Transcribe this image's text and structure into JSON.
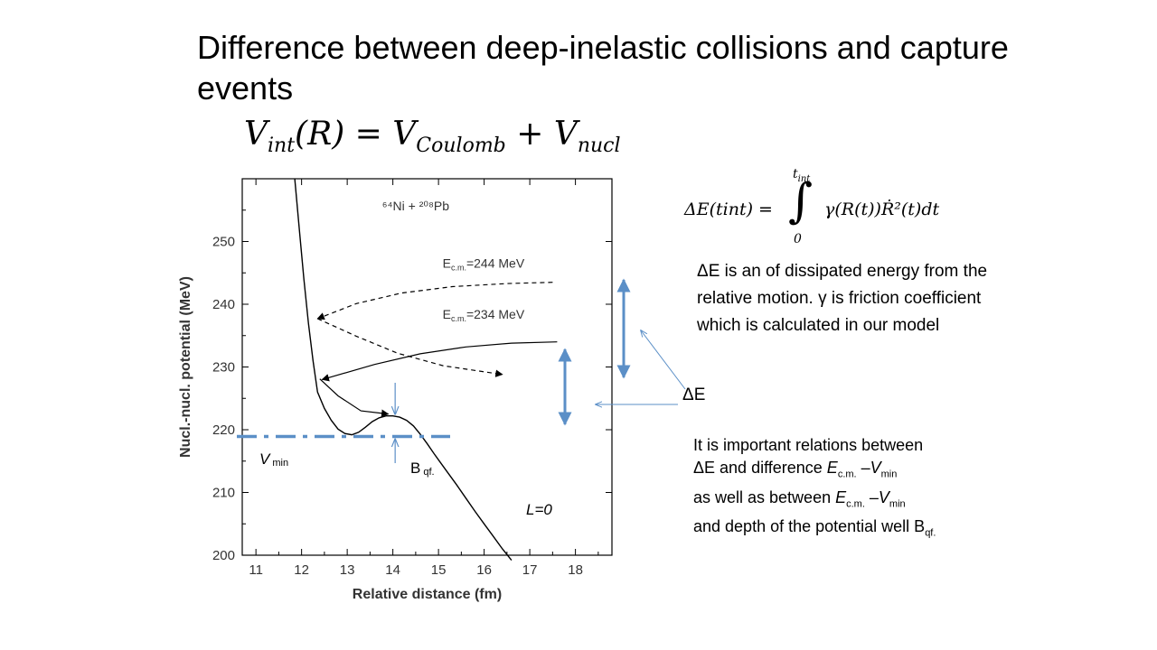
{
  "slide": {
    "title": "Difference between deep-inelastic collisions and capture events",
    "formula_main": {
      "lhs": "V",
      "lhs_sub": "int",
      "arg": "(R) = ",
      "t1": "V",
      "t1_sub": "Coulomb",
      "plus": " + ",
      "t2": "V",
      "t2_sub": "nucl"
    },
    "formula_integral": {
      "lhs": "ΔE(tint) =",
      "upper": "t",
      "upper_sub": "int",
      "lower": "0",
      "integrand": "γ(R(t))Ṙ²(t)dt"
    },
    "explanation": "ΔE is an of dissipated energy from the relative motion. γ is friction coefficient which is calculated in our model",
    "delta_e_label": "ΔE",
    "relations": {
      "line1": "It is important relations between",
      "line2_a": "ΔE and difference ",
      "ecm_E": "E",
      "ecm_sub": "c.m.",
      "dash": " –",
      "vmin_V": "V",
      "vmin_sub": "min",
      "line3_a": "as well as between ",
      "line4_a": "and depth of the potential well B",
      "bqf_sub": "qf."
    }
  },
  "annotations": {
    "vmin": "V",
    "vmin_sub": "min",
    "bqf": "B",
    "bqf_sub": "qf.",
    "l0": "L=0"
  },
  "chart_data": {
    "type": "line",
    "title": "⁶⁴Ni + ²⁰⁸Pb",
    "xlabel": "Relative distance (fm)",
    "ylabel": "Nucl.-nucl. potential (MeV)",
    "xlim": [
      10.7,
      18.8
    ],
    "ylim": [
      200,
      260
    ],
    "xticks": [
      11,
      12,
      13,
      14,
      15,
      16,
      17,
      18
    ],
    "yticks": [
      200,
      210,
      220,
      230,
      240,
      250
    ],
    "series": [
      {
        "style": "solid",
        "x": [
          11.85,
          11.95,
          12.05,
          12.15,
          12.25,
          12.35,
          12.5,
          12.65,
          12.8,
          12.95,
          13.1,
          13.25,
          13.4,
          13.55,
          13.7,
          13.85,
          14.0,
          14.15,
          14.3,
          14.45,
          14.6,
          14.75,
          14.9,
          15.05,
          15.2,
          15.4,
          15.6,
          15.8,
          16.0,
          16.2,
          16.4,
          16.6
        ],
        "y": [
          260,
          252,
          244,
          237,
          231,
          226,
          223.4,
          221.5,
          220.1,
          219.4,
          219.2,
          219.6,
          220.4,
          221.3,
          221.9,
          222.2,
          222.2,
          222.0,
          221.5,
          220.6,
          219.3,
          217.8,
          216.2,
          214.7,
          213.2,
          211.2,
          209.1,
          207.0,
          205.0,
          203.0,
          201.0,
          199.2
        ]
      }
    ],
    "annotations": [
      {
        "text_E": "E",
        "text_sub": "c.m.",
        "text_val": "=244 MeV",
        "x": 16.0,
        "y": 245.8
      },
      {
        "text_E": "E",
        "text_sub": "c.m.",
        "text_val": "=234 MeV",
        "x": 16.0,
        "y": 237.7
      }
    ],
    "trajectories": [
      {
        "name": "ecm244-in",
        "style": "dashed",
        "x": [
          17.5,
          16.5,
          15.3,
          14.2,
          13.2,
          12.35
        ],
        "y": [
          243.5,
          243.3,
          242.8,
          241.8,
          240.1,
          237.7
        ]
      },
      {
        "name": "ecm244-out",
        "style": "dashed",
        "x": [
          12.35,
          13.2,
          14.1,
          15.1,
          16.4
        ],
        "y": [
          237.7,
          234.9,
          232.2,
          230.2,
          228.8
        ]
      },
      {
        "name": "ecm234-in",
        "style": "solid",
        "x": [
          17.6,
          16.6,
          15.6,
          14.6,
          13.6,
          12.45
        ],
        "y": [
          234.0,
          233.8,
          233.2,
          232.1,
          230.4,
          228.0
        ]
      },
      {
        "name": "ecm234-capture",
        "style": "solid",
        "x": [
          12.4,
          12.8,
          13.3,
          13.9
        ],
        "y": [
          228.1,
          225.4,
          223.0,
          222.5
        ]
      }
    ],
    "vmin_level": 219.2,
    "barrier": 222.2
  }
}
